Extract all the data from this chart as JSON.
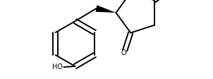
{
  "bg_color": "#ffffff",
  "line_color": "#000000",
  "lw": 1.4,
  "fs": 7.0,
  "figsize": [
    3.02,
    1.12
  ],
  "dpi": 100
}
